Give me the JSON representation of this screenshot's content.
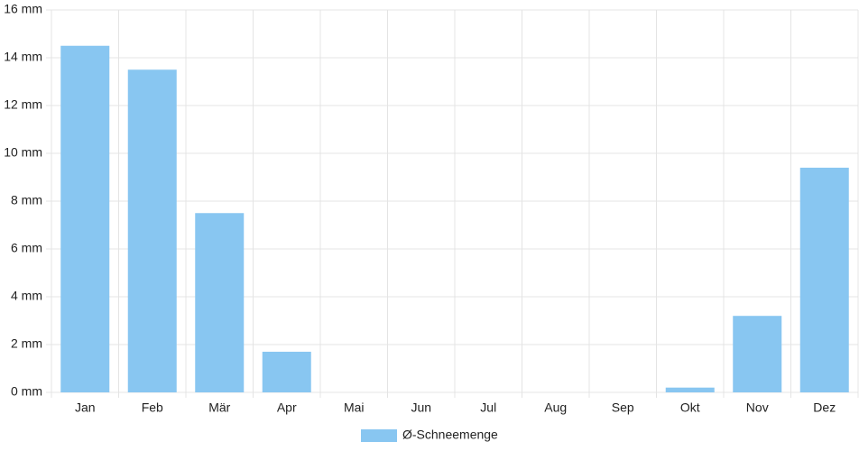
{
  "chart_data": {
    "type": "bar",
    "categories": [
      "Jan",
      "Feb",
      "Mär",
      "Apr",
      "Mai",
      "Jun",
      "Jul",
      "Aug",
      "Sep",
      "Okt",
      "Nov",
      "Dez"
    ],
    "series": [
      {
        "name": "Ø-Schneemenge",
        "color": "#88c6f1",
        "values": [
          14.5,
          13.5,
          7.5,
          1.7,
          0,
          0,
          0,
          0,
          0,
          0.2,
          3.2,
          9.4
        ]
      }
    ],
    "ylim": [
      0,
      16
    ],
    "yticks": [
      {
        "value": 0,
        "label": "0 mm"
      },
      {
        "value": 2,
        "label": "2 mm"
      },
      {
        "value": 4,
        "label": "4 mm"
      },
      {
        "value": 6,
        "label": "6 mm"
      },
      {
        "value": 8,
        "label": "8 mm"
      },
      {
        "value": 10,
        "label": "10 mm"
      },
      {
        "value": 12,
        "label": "12 mm"
      },
      {
        "value": 14,
        "label": "14 mm"
      },
      {
        "value": 16,
        "label": "16 mm"
      }
    ],
    "grid": true,
    "legend": "bottom"
  }
}
